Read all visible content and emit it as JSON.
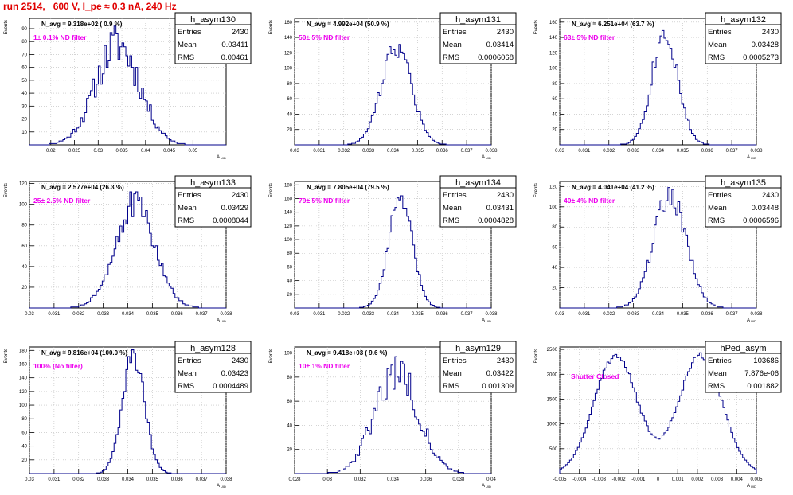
{
  "page_title": "run 2514,   600 V, I_pe ≈ 0.3 nA, 240 Hz",
  "colors": {
    "histogram": "#00008b",
    "annotation": "#ee00ee",
    "title": "#e00000",
    "grid": "#bbbbbb"
  },
  "labels": {
    "y_axis": "Events",
    "x_axis": "A",
    "x_axis_sub": "UID"
  },
  "stats_labels": {
    "entries": "Entries",
    "mean": "Mean",
    "rms": "RMS"
  },
  "chart_data": [
    {
      "type": "bar",
      "name": "h_asym130",
      "stats": {
        "entries": "2430",
        "mean": "0.03411",
        "rms": "0.00461"
      },
      "navg": "N_avg = 9.318e+02 ( 0.9 %)",
      "filter": "1± 0.1% ND filter",
      "xlim": [
        0.0155,
        0.057
      ],
      "ylim": [
        0,
        98
      ],
      "xticks": [
        "0.02",
        "0.025",
        "0.03",
        "0.035",
        "0.04",
        "0.045",
        "0.05"
      ],
      "yticks": [
        "10",
        "20",
        "30",
        "40",
        "50",
        "60",
        "70",
        "80",
        "90"
      ],
      "dist": {
        "shape": "gauss",
        "mean": 0.03411,
        "sigma": 0.00461,
        "peak": 78,
        "nbins": 100,
        "noise": 0.22,
        "seed": 11
      }
    },
    {
      "type": "bar",
      "name": "h_asym131",
      "stats": {
        "entries": "2430",
        "mean": "0.03414",
        "rms": "0.0006068"
      },
      "navg": "N_avg = 4.992e+04 (50.9 %)",
      "filter": "50± 5% ND filter",
      "xlim": [
        0.03,
        0.038
      ],
      "ylim": [
        0,
        165
      ],
      "xticks": [
        "0.03",
        "0.031",
        "0.032",
        "0.033",
        "0.034",
        "0.035",
        "0.036",
        "0.037",
        "0.038"
      ],
      "yticks": [
        "20",
        "40",
        "60",
        "80",
        "100",
        "120",
        "140",
        "160"
      ],
      "dist": {
        "shape": "gauss",
        "mean": 0.03414,
        "sigma": 0.0006068,
        "peak": 130,
        "nbins": 100,
        "noise": 0.12,
        "seed": 22
      }
    },
    {
      "type": "bar",
      "name": "h_asym132",
      "stats": {
        "entries": "2430",
        "mean": "0.03428",
        "rms": "0.0005273"
      },
      "navg": "N_avg = 6.251e+04 (63.7 %)",
      "filter": "63± 5% ND filter",
      "xlim": [
        0.03,
        0.038
      ],
      "ylim": [
        0,
        165
      ],
      "xticks": [
        "0.03",
        "0.031",
        "0.032",
        "0.033",
        "0.034",
        "0.035",
        "0.036",
        "0.037",
        "0.038"
      ],
      "yticks": [
        "20",
        "40",
        "60",
        "80",
        "100",
        "120",
        "140",
        "160"
      ],
      "dist": {
        "shape": "gauss",
        "mean": 0.03428,
        "sigma": 0.0005273,
        "peak": 148,
        "nbins": 100,
        "noise": 0.12,
        "seed": 33
      }
    },
    {
      "type": "bar",
      "name": "h_asym133",
      "stats": {
        "entries": "2430",
        "mean": "0.03429",
        "rms": "0.0008044"
      },
      "navg": "N_avg = 2.577e+04 (26.3 %)",
      "filter": "25± 2.5% ND filter",
      "xlim": [
        0.03,
        0.038
      ],
      "ylim": [
        0,
        122
      ],
      "xticks": [
        "0.03",
        "0.031",
        "0.032",
        "0.033",
        "0.034",
        "0.035",
        "0.036",
        "0.037",
        "0.038"
      ],
      "yticks": [
        "20",
        "40",
        "60",
        "80",
        "100",
        "120"
      ],
      "dist": {
        "shape": "gauss",
        "mean": 0.03429,
        "sigma": 0.0008044,
        "peak": 100,
        "nbins": 100,
        "noise": 0.15,
        "seed": 44
      }
    },
    {
      "type": "bar",
      "name": "h_asym134",
      "stats": {
        "entries": "2430",
        "mean": "0.03431",
        "rms": "0.0004828"
      },
      "navg": "N_avg = 7.805e+04 (79.5 %)",
      "filter": "79± 5% ND filter",
      "xlim": [
        0.03,
        0.038
      ],
      "ylim": [
        0,
        185
      ],
      "xticks": [
        "0.03",
        "0.031",
        "0.032",
        "0.033",
        "0.034",
        "0.035",
        "0.036",
        "0.037",
        "0.038"
      ],
      "yticks": [
        "20",
        "40",
        "60",
        "80",
        "100",
        "120",
        "140",
        "160",
        "180"
      ],
      "dist": {
        "shape": "gauss",
        "mean": 0.03431,
        "sigma": 0.0004828,
        "peak": 160,
        "nbins": 100,
        "noise": 0.1,
        "seed": 55
      }
    },
    {
      "type": "bar",
      "name": "h_asym135",
      "stats": {
        "entries": "2430",
        "mean": "0.03448",
        "rms": "0.0006596"
      },
      "navg": "N_avg = 4.041e+04 (41.2 %)",
      "filter": "40± 4% ND filter",
      "xlim": [
        0.03,
        0.038
      ],
      "ylim": [
        0,
        125
      ],
      "xticks": [
        "0.03",
        "0.031",
        "0.032",
        "0.033",
        "0.034",
        "0.035",
        "0.036",
        "0.037",
        "0.038"
      ],
      "yticks": [
        "20",
        "40",
        "60",
        "80",
        "100",
        "120"
      ],
      "dist": {
        "shape": "gauss",
        "mean": 0.03448,
        "sigma": 0.0006596,
        "peak": 112,
        "nbins": 100,
        "noise": 0.12,
        "seed": 66
      }
    },
    {
      "type": "bar",
      "name": "h_asym128",
      "stats": {
        "entries": "2430",
        "mean": "0.03423",
        "rms": "0.0004489"
      },
      "navg": "N_avg = 9.816e+04 (100.0 %)",
      "filter": "100% (No filter)",
      "xlim": [
        0.03,
        0.038
      ],
      "ylim": [
        0,
        185
      ],
      "xticks": [
        "0.03",
        "0.031",
        "0.032",
        "0.033",
        "0.034",
        "0.035",
        "0.036",
        "0.037",
        "0.038"
      ],
      "yticks": [
        "20",
        "40",
        "60",
        "80",
        "100",
        "120",
        "140",
        "160",
        "180"
      ],
      "dist": {
        "shape": "gauss",
        "mean": 0.03423,
        "sigma": 0.0004489,
        "peak": 172,
        "nbins": 100,
        "noise": 0.1,
        "seed": 77
      }
    },
    {
      "type": "bar",
      "name": "h_asym129",
      "stats": {
        "entries": "2430",
        "mean": "0.03422",
        "rms": "0.001309"
      },
      "navg": "N_avg = 9.418e+03 ( 9.6 %)",
      "filter": "10± 1% ND filter",
      "xlim": [
        0.028,
        0.04
      ],
      "ylim": [
        0,
        105
      ],
      "xticks": [
        "0.028",
        "0.03",
        "0.032",
        "0.034",
        "0.036",
        "0.038",
        "0.04"
      ],
      "yticks": [
        "20",
        "40",
        "60",
        "80",
        "100"
      ],
      "dist": {
        "shape": "gauss",
        "mean": 0.03422,
        "sigma": 0.001309,
        "peak": 86,
        "nbins": 100,
        "noise": 0.2,
        "seed": 88
      }
    },
    {
      "type": "bar",
      "name": "hPed_asym",
      "stats": {
        "entries": "103686",
        "mean": "7.876e-06",
        "rms": "0.001882"
      },
      "filter": "Shutter Closed",
      "xlim": [
        -0.005,
        0.005
      ],
      "ylim": [
        0,
        2550
      ],
      "xticks": [
        "-0.005",
        "-0.004",
        "-0.003",
        "-0.002",
        "-0.001",
        "0",
        "0.001",
        "0.002",
        "0.003",
        "0.004",
        "0.005"
      ],
      "yticks": [
        "500",
        "1000",
        "1500",
        "2000",
        "2500"
      ],
      "dist": {
        "shape": "bimodal",
        "centers": [
          -0.00215,
          0.00215
        ],
        "sigma": 0.0011,
        "peak": 2380,
        "nbins": 100,
        "noise": 0.03,
        "seed": 99
      }
    }
  ]
}
